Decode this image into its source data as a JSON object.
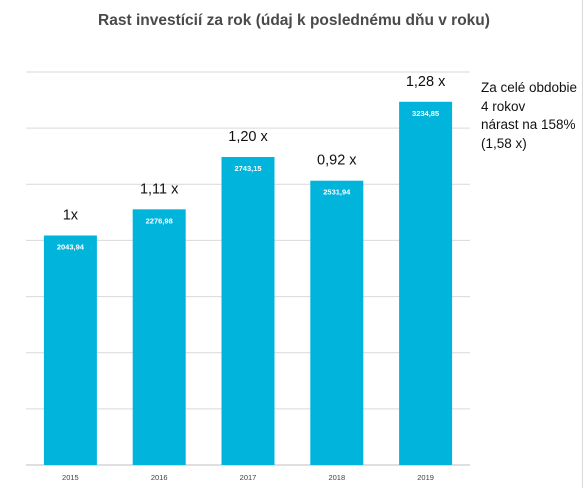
{
  "chart_data": {
    "type": "bar",
    "title": "Rast investícií za rok (údaj k poslednému dňu v roku)",
    "categories": [
      "2015",
      "2016",
      "2017",
      "2018",
      "2019"
    ],
    "values": [
      2043.94,
      2276.98,
      2743.15,
      2531.94,
      3234.85
    ],
    "value_labels": [
      "2043,94",
      "2276,98",
      "2743,15",
      "2531,94",
      "3234,85"
    ],
    "growth_labels": [
      "1x",
      "1,11 x",
      "1,20 x",
      "0,92 x",
      "1,28 x"
    ],
    "ylim": [
      0,
      3500
    ],
    "grid": true,
    "xlabel": "",
    "ylabel": "",
    "bar_color": "#00b4dc",
    "annotation": [
      "Za celé obdobie",
      "4 rokov",
      "nárast na 158%",
      "(1,58 x)"
    ]
  }
}
